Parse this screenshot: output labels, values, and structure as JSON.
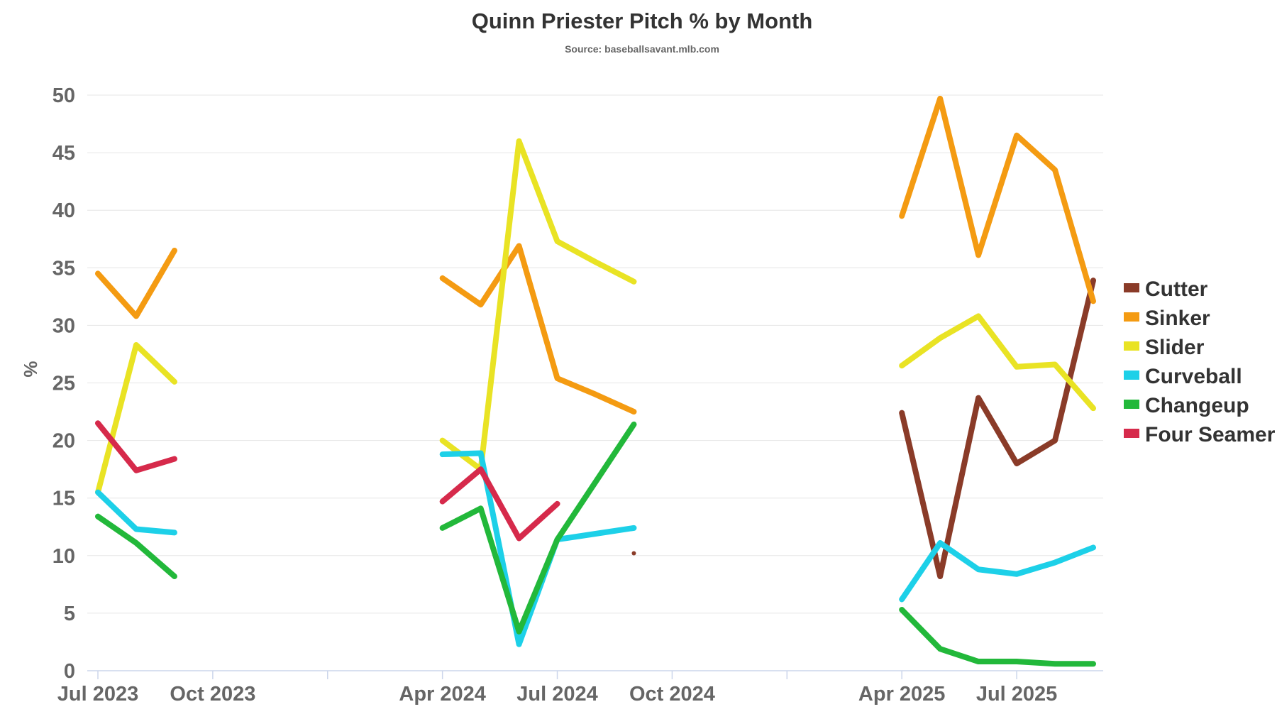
{
  "chart_data": {
    "type": "line",
    "title": "Quinn Priester Pitch % by Month",
    "subtitle": "Source: baseballsavant.mlb.com",
    "ylabel": "%",
    "xlabel": "",
    "ylim": [
      0,
      50
    ],
    "yticks": [
      0,
      5,
      10,
      15,
      20,
      25,
      30,
      35,
      40,
      45,
      50
    ],
    "xtick_labels": [
      {
        "month": "2023-07",
        "label": "Jul 2023"
      },
      {
        "month": "2023-10",
        "label": "Oct 2023"
      },
      {
        "month": "2024-01",
        "label": ""
      },
      {
        "month": "2024-04",
        "label": "Apr 2024"
      },
      {
        "month": "2024-07",
        "label": "Jul 2024"
      },
      {
        "month": "2024-10",
        "label": "Oct 2024"
      },
      {
        "month": "2025-01",
        "label": ""
      },
      {
        "month": "2025-04",
        "label": "Apr 2025"
      },
      {
        "month": "2025-07",
        "label": "Jul 2025"
      }
    ],
    "grid": true,
    "legend_position": "right",
    "x": [
      "2023-07",
      "2023-08",
      "2023-09",
      "2024-04",
      "2024-05",
      "2024-06",
      "2024-07",
      "2024-08",
      "2024-09",
      "2025-04",
      "2025-05",
      "2025-06",
      "2025-07",
      "2025-08",
      "2025-09"
    ],
    "series": [
      {
        "name": "Cutter",
        "color": "#8a3b28",
        "values": [
          null,
          null,
          null,
          null,
          null,
          null,
          null,
          null,
          10.2,
          22.4,
          8.2,
          23.7,
          18.0,
          20.0,
          33.9
        ]
      },
      {
        "name": "Sinker",
        "color": "#f49b12",
        "values": [
          34.5,
          30.8,
          36.5,
          34.1,
          31.8,
          36.9,
          25.4,
          24.0,
          22.5,
          39.5,
          49.7,
          36.1,
          46.5,
          43.5,
          32.1
        ]
      },
      {
        "name": "Slider",
        "color": "#e9e324",
        "values": [
          15.5,
          28.3,
          25.1,
          20.0,
          17.5,
          46.0,
          37.3,
          35.5,
          33.8,
          26.5,
          28.9,
          30.8,
          26.4,
          26.6,
          22.8
        ]
      },
      {
        "name": "Curveball",
        "color": "#1dd0e8",
        "values": [
          15.5,
          12.3,
          12.0,
          18.8,
          18.9,
          2.3,
          11.4,
          11.9,
          12.4,
          6.2,
          11.1,
          8.8,
          8.4,
          9.4,
          10.7
        ]
      },
      {
        "name": "Changeup",
        "color": "#22b83a",
        "values": [
          13.4,
          11.1,
          8.2,
          12.4,
          14.1,
          3.4,
          11.4,
          16.4,
          21.4,
          5.3,
          1.9,
          0.8,
          0.8,
          0.6,
          0.6
        ]
      },
      {
        "name": "Four Seamer",
        "color": "#d62a4b",
        "values": [
          21.5,
          17.4,
          18.4,
          14.7,
          17.5,
          11.5,
          14.5,
          null,
          null,
          null,
          null,
          null,
          null,
          null,
          null
        ]
      }
    ]
  }
}
